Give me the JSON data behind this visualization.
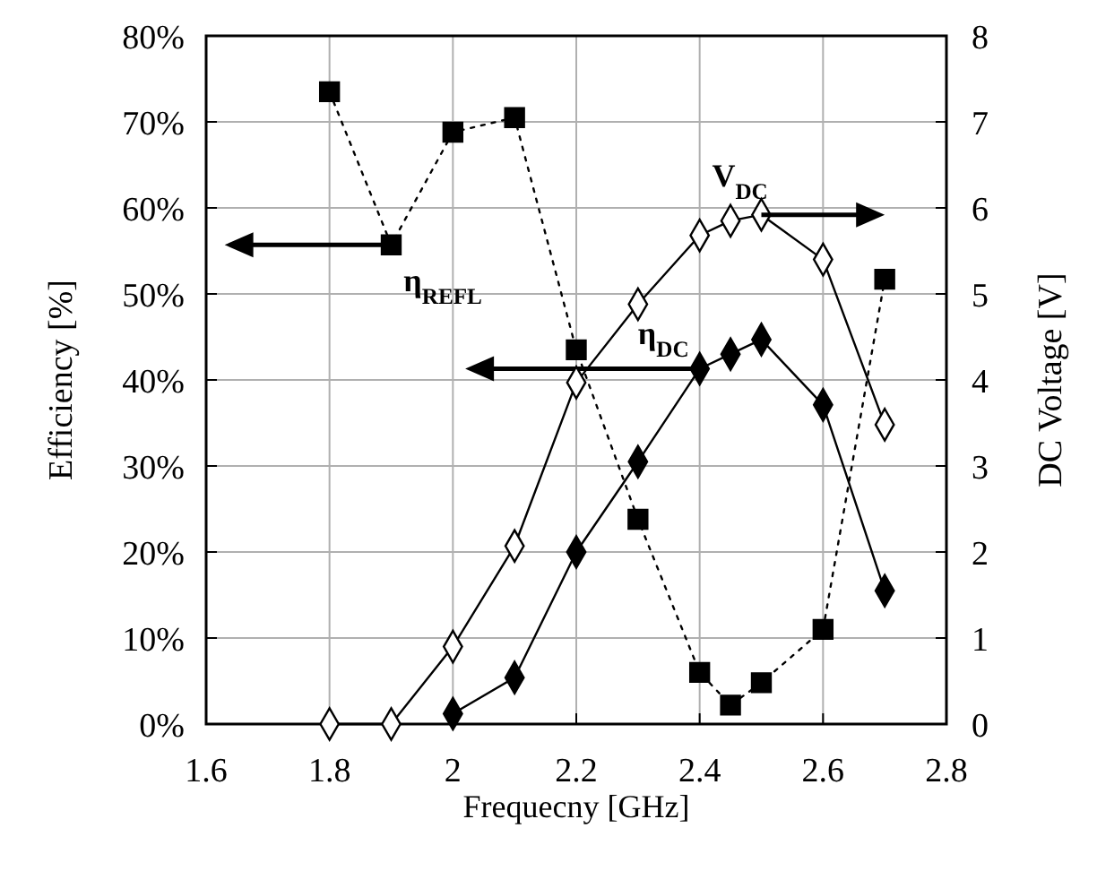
{
  "chart_data": {
    "type": "line",
    "xlabel": "Frequecny [GHz]",
    "ylabel": "Efficiency [%]",
    "y2label": "DC Voltage [V]",
    "xlim": [
      1.6,
      2.8
    ],
    "xticks": [
      1.6,
      1.8,
      2,
      2.2,
      2.4,
      2.6,
      2.8
    ],
    "ylim": [
      0,
      80
    ],
    "yticks": [
      {
        "value": 0,
        "label": "0%"
      },
      {
        "value": 10,
        "label": "10%"
      },
      {
        "value": 20,
        "label": "20%"
      },
      {
        "value": 30,
        "label": "30%"
      },
      {
        "value": 40,
        "label": "40%"
      },
      {
        "value": 50,
        "label": "50%"
      },
      {
        "value": 60,
        "label": "60%"
      },
      {
        "value": 70,
        "label": "70%"
      },
      {
        "value": 80,
        "label": "80%"
      }
    ],
    "y2lim": [
      0,
      8
    ],
    "y2ticks": [
      0,
      1,
      2,
      3,
      4,
      5,
      6,
      7,
      8
    ],
    "grid": true,
    "series": [
      {
        "name": "η$_{REFL}$",
        "color": "#000000",
        "marker": "square",
        "line_style": "dotted",
        "x": [
          1.8,
          1.9,
          2.0,
          2.1,
          2.2,
          2.3,
          2.4,
          2.45,
          2.5,
          2.6,
          2.7
        ],
        "values": [
          73.5,
          55.7,
          68.8,
          70.5,
          43.5,
          23.8,
          6,
          2.2,
          4.8,
          11,
          51.7
        ]
      },
      {
        "name": "η$_{DC}$",
        "color": "#000000",
        "marker": "diamond",
        "line_style": "solid",
        "x": [
          2.0,
          2.1,
          2.2,
          2.3,
          2.4,
          2.45,
          2.5,
          2.6,
          2.7
        ],
        "values": [
          1.2,
          5.4,
          20,
          30.5,
          41.3,
          43,
          44.7,
          37.1,
          15.5
        ]
      },
      {
        "name": "V$_{DC}$",
        "color": "#ffffff",
        "marker": "diamond",
        "line_style": "solid",
        "axis": "y2",
        "x": [
          1.8,
          1.9,
          2.0,
          2.1,
          2.2,
          2.3,
          2.4,
          2.45,
          2.5,
          2.6,
          2.7
        ],
        "values": [
          0,
          0,
          0.9,
          2.07,
          3.97,
          4.88,
          5.68,
          5.85,
          5.92,
          5.4,
          3.48
        ]
      }
    ]
  }
}
